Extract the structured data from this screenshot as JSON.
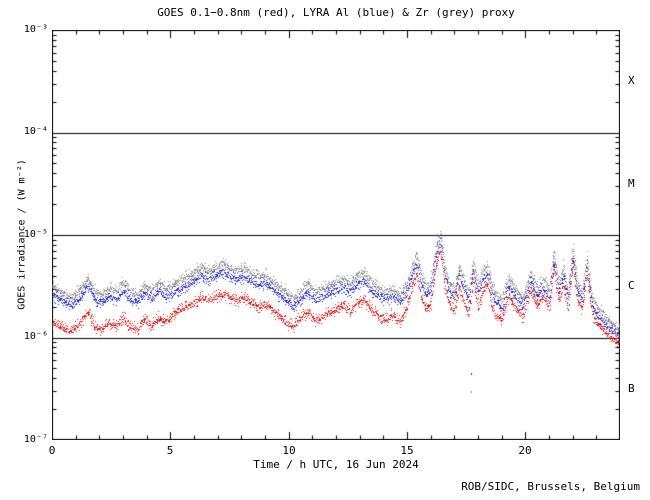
{
  "title": "GOES 0.1−0.8nm (red), LYRA Al (blue) & Zr (grey) proxy",
  "footer": "ROB/SIDC, Brussels, Belgium",
  "xaxis": {
    "label": "Time / h UTC, 16 Jun 2024",
    "major_ticks": [
      "0",
      "5",
      "10",
      "15",
      "20"
    ],
    "range": [
      0,
      24
    ]
  },
  "yaxis": {
    "label": "GOES irradiance / (W m⁻²)",
    "tick_labels": [
      "10⁻³",
      "10⁻⁴",
      "10⁻⁵",
      "10⁻⁶",
      "10⁻⁷"
    ],
    "ylim": [
      1e-07,
      0.001
    ]
  },
  "class_bands": [
    "X",
    "M",
    "C",
    "B"
  ],
  "chart_data": {
    "type": "scatter",
    "title": "GOES 0.1−0.8nm (red), LYRA Al (blue) & Zr (grey) proxy",
    "xlabel": "Time / h UTC, 16 Jun 2024",
    "ylabel": "GOES irradiance / (W m⁻²)",
    "x_range": [
      0,
      24
    ],
    "log10_range": [
      -7,
      -3
    ],
    "class_boundaries": [
      0.0001,
      1e-05,
      1e-06
    ],
    "values_scale": 1e-06,
    "values_unit": "W m⁻²",
    "x": [
      0.0,
      0.3,
      0.6,
      0.9,
      1.2,
      1.5,
      1.8,
      2.1,
      2.4,
      2.7,
      3.0,
      3.3,
      3.6,
      3.9,
      4.2,
      4.5,
      4.8,
      5.1,
      5.4,
      5.7,
      6.0,
      6.3,
      6.6,
      6.9,
      7.2,
      7.5,
      7.8,
      8.1,
      8.4,
      8.7,
      9.0,
      9.3,
      9.6,
      9.9,
      10.2,
      10.5,
      10.8,
      11.1,
      11.4,
      11.7,
      12.0,
      12.3,
      12.6,
      12.9,
      13.2,
      13.5,
      13.8,
      14.1,
      14.4,
      14.7,
      15.0,
      15.2,
      15.4,
      15.6,
      15.8,
      16.0,
      16.2,
      16.4,
      16.6,
      16.8,
      17.0,
      17.2,
      17.4,
      17.6,
      17.8,
      18.0,
      18.2,
      18.4,
      18.6,
      18.8,
      19.0,
      19.3,
      19.6,
      19.9,
      20.2,
      20.5,
      20.8,
      21.0,
      21.2,
      21.4,
      21.6,
      21.8,
      22.0,
      22.2,
      22.4,
      22.6,
      22.8,
      23.0,
      23.3,
      23.6,
      24.0
    ],
    "series": [
      {
        "key": "zr",
        "name": "LYRA Zr proxy",
        "color": "#8c8c8c",
        "values": [
          3.1,
          2.9,
          2.6,
          2.5,
          3.0,
          3.8,
          2.9,
          2.6,
          3.1,
          2.8,
          3.5,
          2.9,
          2.6,
          3.2,
          2.9,
          3.5,
          3.0,
          3.2,
          3.6,
          4.0,
          4.3,
          4.9,
          4.4,
          4.8,
          5.3,
          4.8,
          4.4,
          4.8,
          4.3,
          4.0,
          4.1,
          3.6,
          3.1,
          2.8,
          2.4,
          2.9,
          3.4,
          2.8,
          3.0,
          3.2,
          3.5,
          3.8,
          3.4,
          4.1,
          4.3,
          3.5,
          3.0,
          2.8,
          3.1,
          2.6,
          3.4,
          4.8,
          6.6,
          4.1,
          3.1,
          3.5,
          7.2,
          10.8,
          4.8,
          3.4,
          2.9,
          5.0,
          3.6,
          2.8,
          5.8,
          3.1,
          4.6,
          5.3,
          3.1,
          2.6,
          2.3,
          4.0,
          2.9,
          2.4,
          4.3,
          3.1,
          3.7,
          2.9,
          7.0,
          3.4,
          5.0,
          2.9,
          7.8,
          3.4,
          2.8,
          6.2,
          2.6,
          2.0,
          1.7,
          1.4,
          1.2
        ]
      },
      {
        "key": "al",
        "name": "LYRA Al proxy",
        "color": "#2a2ab8",
        "values": [
          2.6,
          2.4,
          2.2,
          2.1,
          2.5,
          3.2,
          2.4,
          2.2,
          2.6,
          2.3,
          2.9,
          2.4,
          2.2,
          2.7,
          2.4,
          2.9,
          2.5,
          2.7,
          3.0,
          3.3,
          3.6,
          4.1,
          3.7,
          4.0,
          4.4,
          4.0,
          3.7,
          4.0,
          3.6,
          3.3,
          3.4,
          3.0,
          2.6,
          2.3,
          2.0,
          2.4,
          2.8,
          2.3,
          2.5,
          2.7,
          2.9,
          3.2,
          2.8,
          3.4,
          3.6,
          2.9,
          2.5,
          2.3,
          2.6,
          2.2,
          2.8,
          4.0,
          5.5,
          3.4,
          2.6,
          2.9,
          6.0,
          9.0,
          4.0,
          2.8,
          2.4,
          4.2,
          3.0,
          2.3,
          4.8,
          2.6,
          3.8,
          4.4,
          2.6,
          2.2,
          1.9,
          3.3,
          2.4,
          2.0,
          3.6,
          2.6,
          3.1,
          2.4,
          5.8,
          2.8,
          4.2,
          2.4,
          6.5,
          2.8,
          2.3,
          5.2,
          2.2,
          1.7,
          1.4,
          1.2,
          1.0
        ]
      },
      {
        "key": "goes",
        "name": "GOES 0.1−0.8nm",
        "color": "#cf1414",
        "values": [
          1.4,
          1.3,
          1.2,
          1.2,
          1.4,
          1.8,
          1.3,
          1.2,
          1.4,
          1.3,
          1.6,
          1.3,
          1.2,
          1.5,
          1.3,
          1.6,
          1.4,
          1.7,
          1.9,
          2.0,
          2.2,
          2.5,
          2.3,
          2.5,
          2.7,
          2.5,
          2.3,
          2.5,
          2.2,
          2.0,
          2.1,
          1.9,
          1.6,
          1.4,
          1.3,
          1.6,
          1.8,
          1.5,
          1.6,
          1.8,
          1.9,
          2.1,
          1.8,
          2.2,
          2.3,
          1.9,
          1.6,
          1.5,
          1.7,
          1.4,
          2.0,
          3.0,
          4.3,
          2.5,
          1.9,
          2.2,
          4.8,
          7.6,
          3.1,
          2.1,
          1.8,
          3.2,
          2.2,
          1.7,
          3.7,
          1.9,
          2.9,
          3.4,
          1.9,
          1.6,
          1.5,
          2.6,
          1.9,
          1.6,
          2.9,
          2.1,
          2.5,
          1.9,
          4.8,
          2.2,
          3.4,
          1.9,
          5.4,
          2.3,
          1.9,
          4.3,
          1.8,
          1.4,
          1.2,
          1.0,
          0.9
        ]
      }
    ],
    "stray_points": [
      {
        "series": "zr",
        "t": 17.7,
        "value": 3e-07
      },
      {
        "series": "al",
        "t": 17.7,
        "value": 4.5e-07
      }
    ]
  }
}
